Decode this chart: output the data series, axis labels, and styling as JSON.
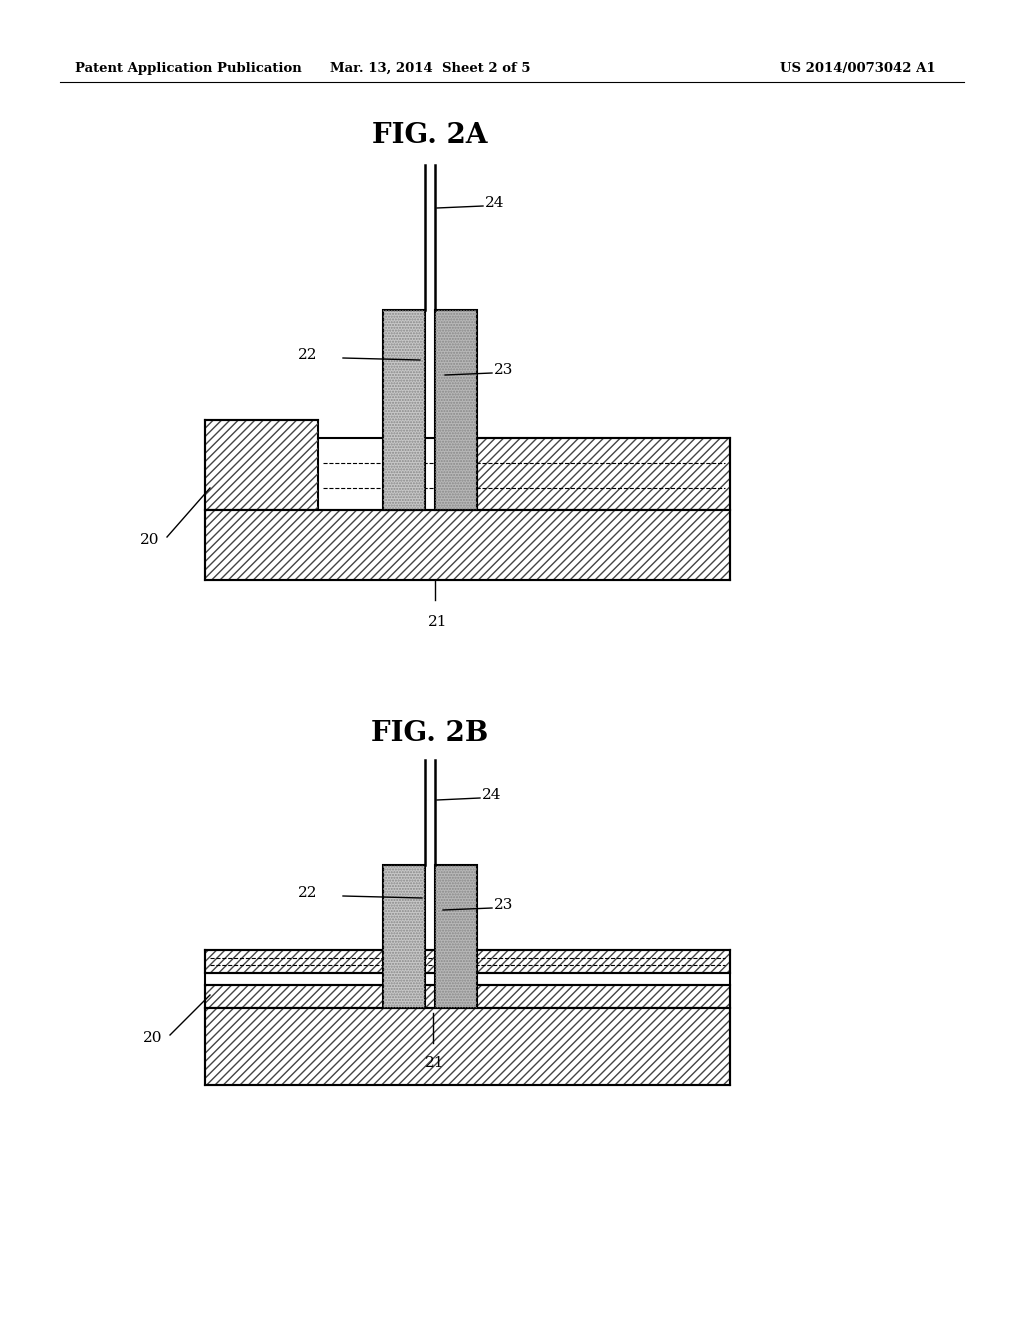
{
  "background_color": "#ffffff",
  "header_left": "Patent Application Publication",
  "header_center": "Mar. 13, 2014  Sheet 2 of 5",
  "header_right": "US 2014/0073042 A1",
  "fig2a_title": "FIG. 2A",
  "fig2b_title": "FIG. 2B",
  "line_color": "#000000",
  "hatch_color": "#444444",
  "gray_fill": "#c8c8c8",
  "gray_fill2": "#b8b8b8"
}
